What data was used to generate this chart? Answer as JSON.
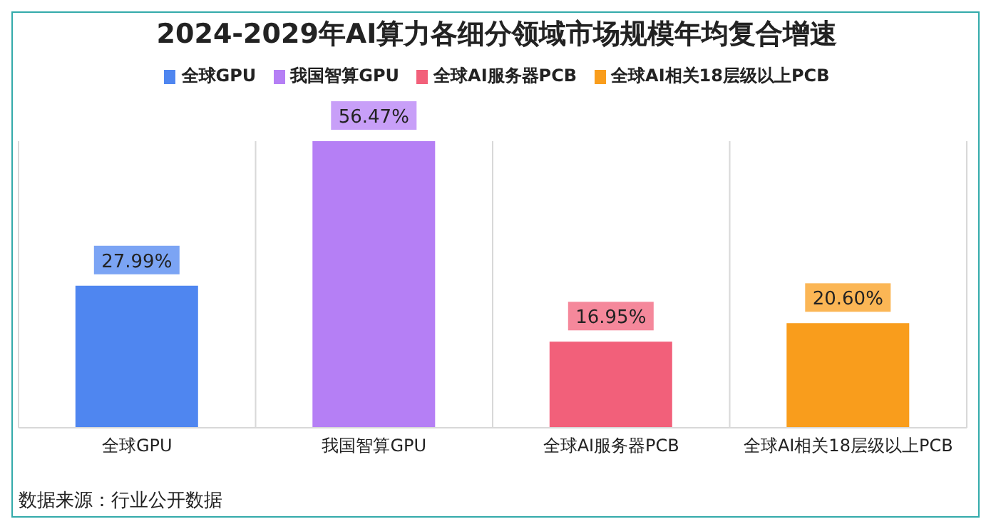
{
  "chart_data": {
    "type": "bar",
    "title": "2024-2029年AI算力各细分领域市场规模年均复合增速",
    "categories": [
      "全球GPU",
      "我国智算GPU",
      "全球AI服务器PCB",
      "全球AI相关18层级以上PCB"
    ],
    "series": [
      {
        "name": "全球GPU",
        "color": "#4f86f0",
        "values": [
          27.99,
          null,
          null,
          null
        ],
        "value_labels": [
          "27.99%",
          null,
          null,
          null
        ]
      },
      {
        "name": "我国智算GPU",
        "color": "#b57ff5",
        "values": [
          null,
          56.47,
          null,
          null
        ],
        "value_labels": [
          null,
          "56.47%",
          null,
          null
        ]
      },
      {
        "name": "全球AI服务器PCB",
        "color": "#f2607a",
        "values": [
          null,
          null,
          16.95,
          null
        ],
        "value_labels": [
          null,
          null,
          "16.95%",
          null
        ]
      },
      {
        "name": "全球AI相关18层级以上PCB",
        "color": "#f99d1c",
        "values": [
          null,
          null,
          null,
          20.6
        ],
        "value_labels": [
          null,
          null,
          null,
          "20.60%"
        ]
      }
    ],
    "stacked": true,
    "grid": "x",
    "legend": "top",
    "tick_labels": "x",
    "annotations": [
      "数据来源：行业公开数据"
    ]
  }
}
